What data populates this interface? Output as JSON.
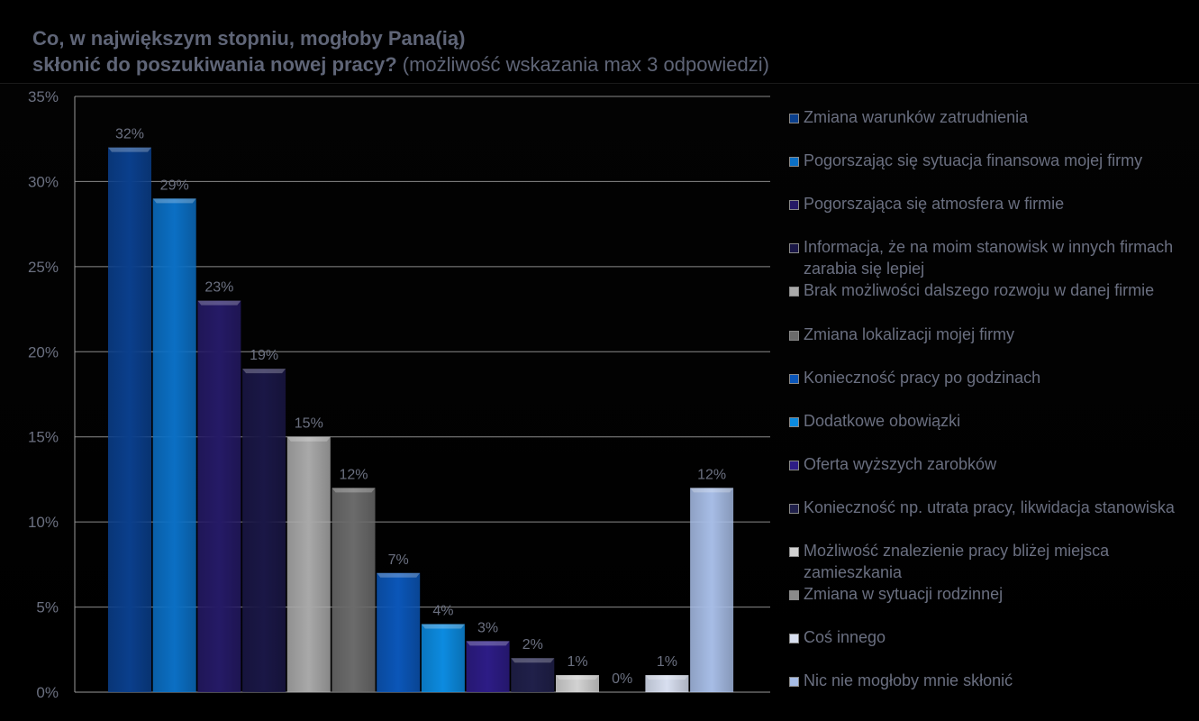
{
  "title": {
    "line1": "Co, w największym stopniu, mogłoby Pana(ią)",
    "line2_bold": "skłonić do poszukiwania nowej pracy?",
    "line2_rest": " (możliwość wskazania max 3 odpowiedzi)"
  },
  "chart_data": {
    "type": "bar",
    "title": "Co, w największym stopniu, mogłoby Pana(ią) skłonić do poszukiwania nowej pracy? (możliwość wskazania max 3 odpowiedzi)",
    "categories": [
      "Zmiana warunków zatrudnienia",
      "Pogorszając się sytuacja finansowa mojej firmy",
      "Pogorszająca się atmosfera w firmie",
      "Informacja, że na moim stanowisk w innych firmach zarabia się lepiej",
      "Brak możliwości dalszego rozwoju w danej firmie",
      "Zmiana lokalizacji mojej firmy",
      "Konieczność pracy po godzinach",
      "Dodatkowe obowiązki",
      "Oferta wyższych zarobków",
      "Konieczność np. utrata pracy, likwidacja stanowiska",
      "Możliwość znalezienie pracy bliżej miejsca zamieszkania",
      "Zmiana w sytuacji rodzinnej",
      "Coś innego",
      "Nic nie mogłoby mnie skłonić"
    ],
    "values": [
      32,
      29,
      23,
      19,
      15,
      12,
      7,
      4,
      3,
      2,
      1,
      0,
      1,
      12
    ],
    "value_labels": [
      "32%",
      "29%",
      "23%",
      "19%",
      "15%",
      "12%",
      "7%",
      "4%",
      "3%",
      "2%",
      "1%",
      "0%",
      "1%",
      "12%"
    ],
    "colors": [
      "#0a3f8c",
      "#0b6fc4",
      "#251a66",
      "#1a1746",
      "#a9a9a9",
      "#6b6b6b",
      "#0b56b8",
      "#0c8be0",
      "#2d1c86",
      "#20204a",
      "#d2d2d2",
      "#8a8a8a",
      "#d8dff0",
      "#a7bde6"
    ],
    "ylim": [
      0,
      35
    ],
    "y_ticks": [
      "0%",
      "5%",
      "10%",
      "15%",
      "20%",
      "25%",
      "30%",
      "35%"
    ],
    "grid": true,
    "legend_position": "right"
  }
}
